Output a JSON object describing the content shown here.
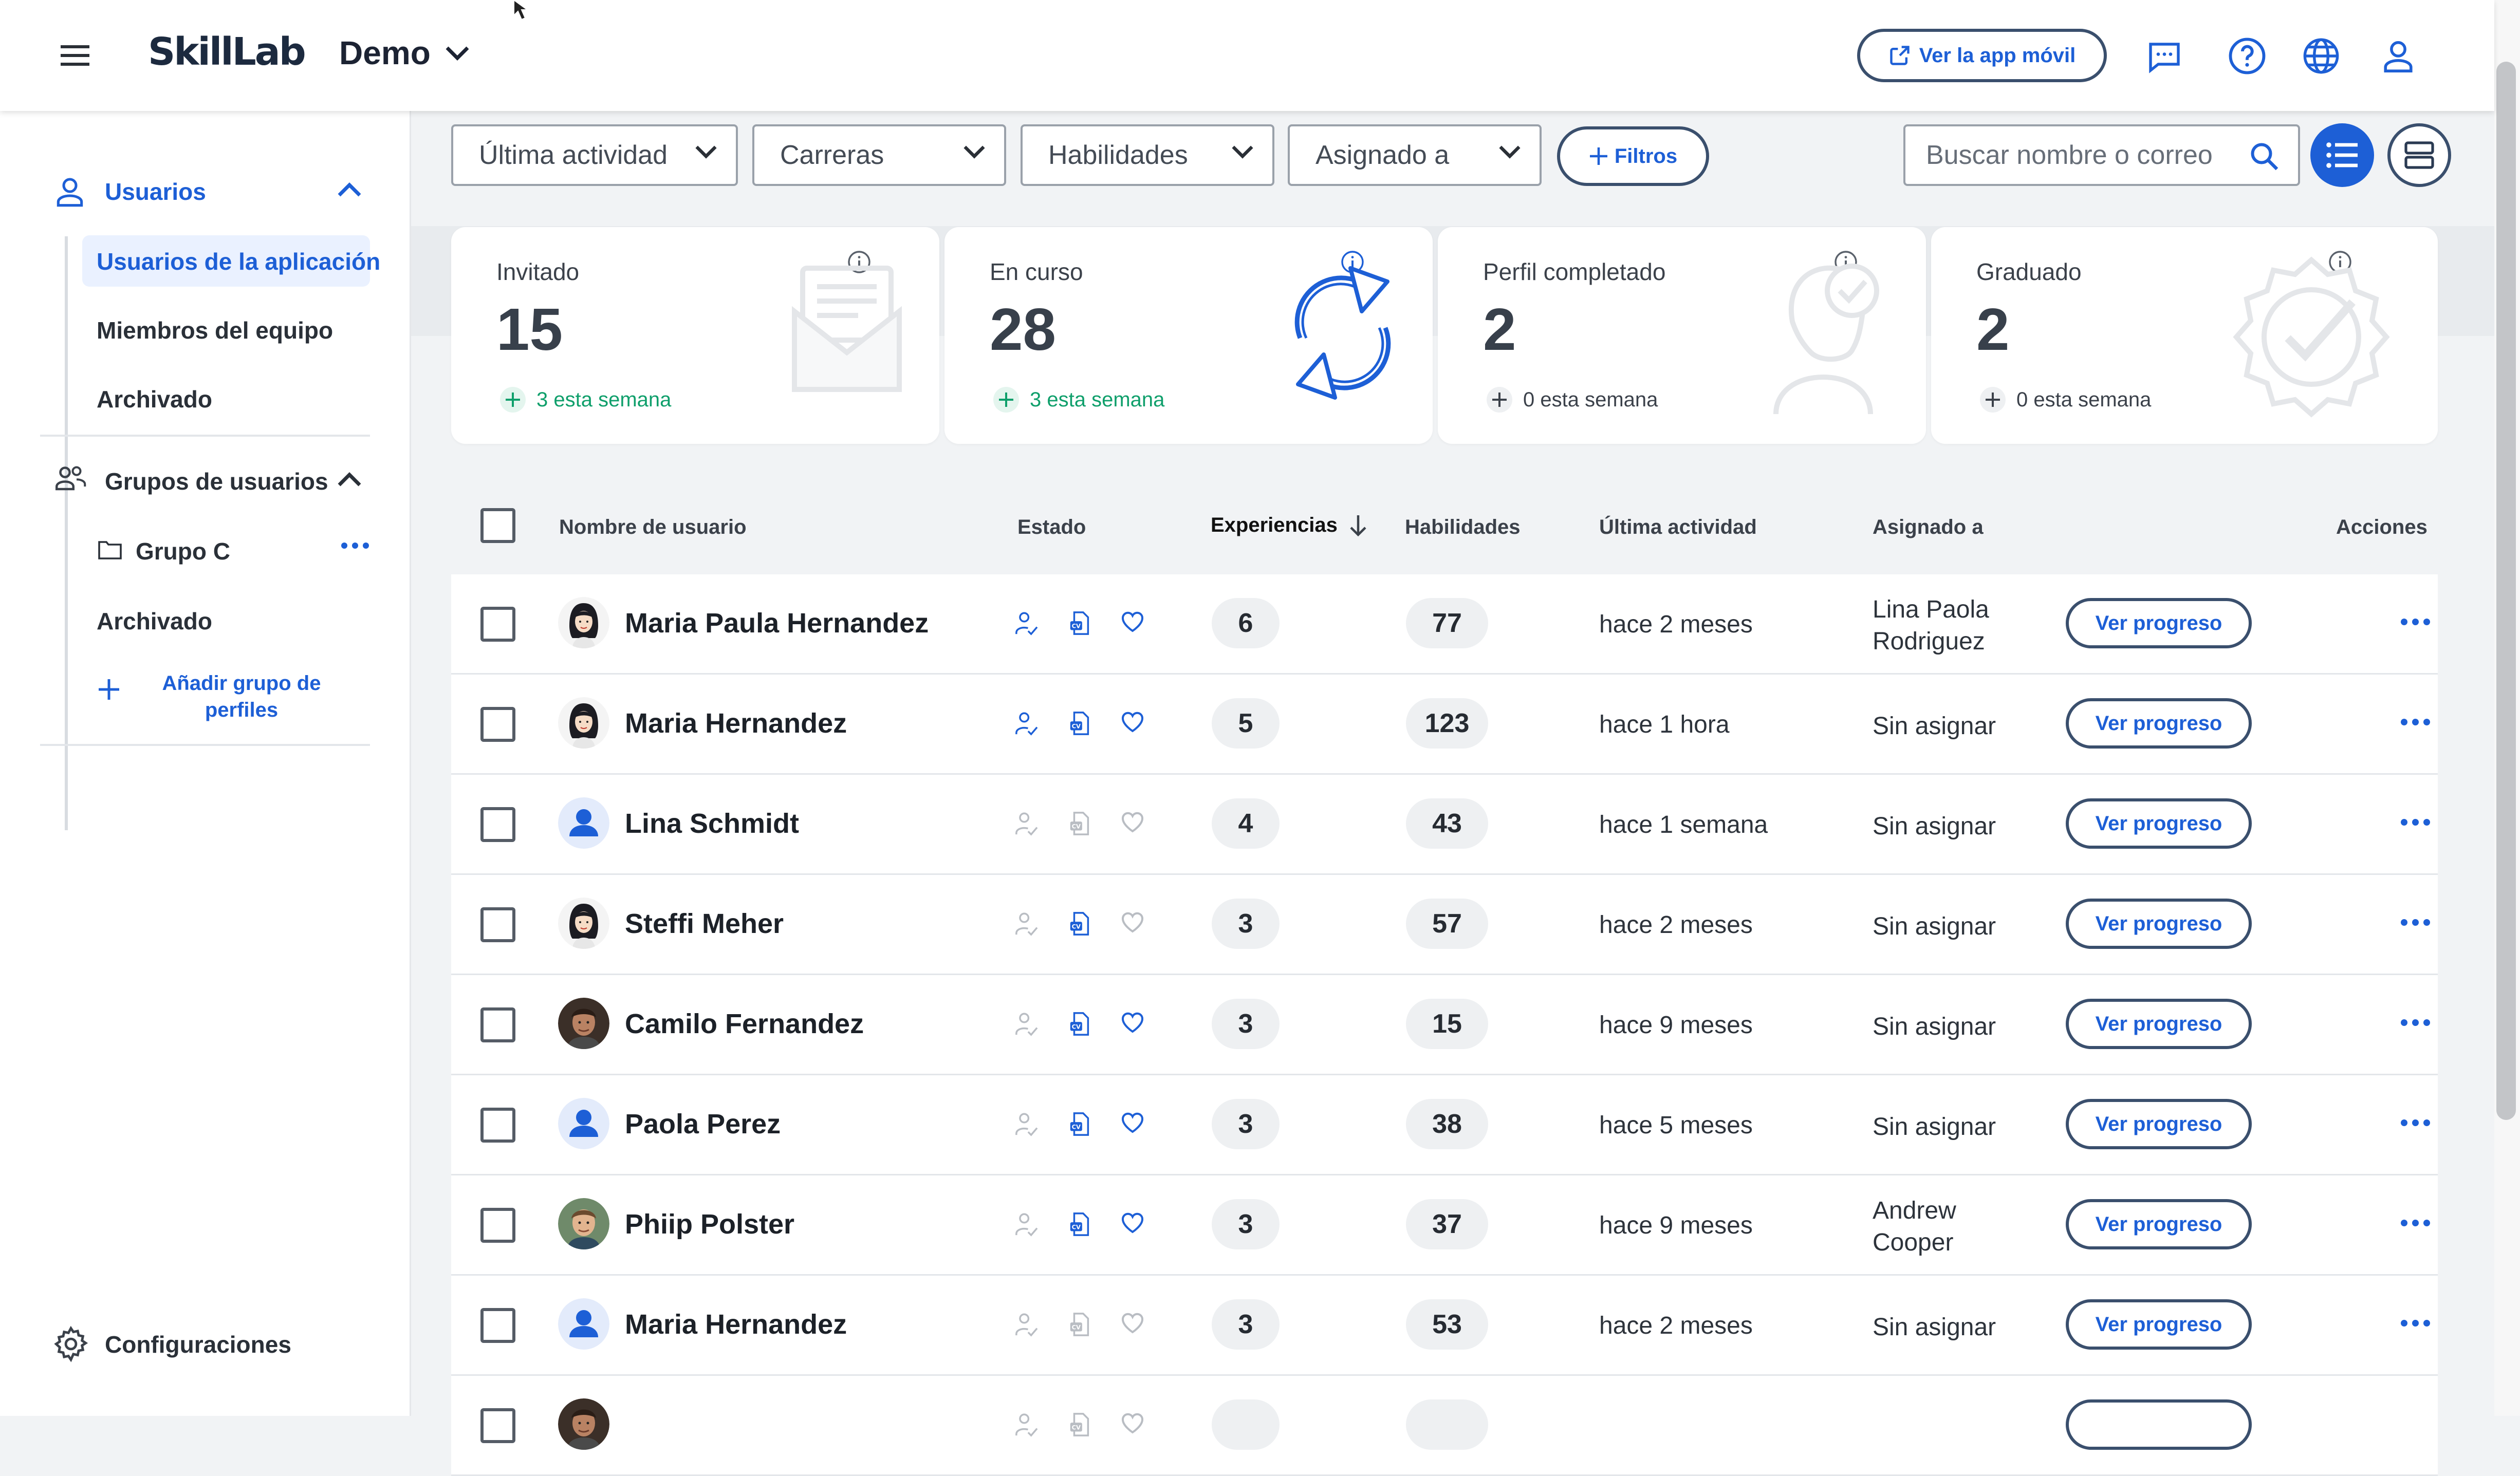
{
  "topbar": {
    "brand": "SkillLab",
    "workspace": "Demo",
    "mobile_app_button": "Ver la app móvil"
  },
  "sidebar": {
    "users_section": "Usuarios",
    "users_items": [
      "Usuarios de la aplicación",
      "Miembros del equipo",
      "Archivado"
    ],
    "groups_section": "Grupos de usuarios",
    "group_name": "Grupo C",
    "groups_archived": "Archivado",
    "add_group_line1": "Añadir grupo de",
    "add_group_line2": "perfiles",
    "settings": "Configuraciones"
  },
  "filters": {
    "last_activity": "Última actividad",
    "careers": "Carreras",
    "skills": "Habilidades",
    "assigned_to": "Asignado a",
    "filters_button": "Filtros",
    "search_placeholder": "Buscar nombre o correo"
  },
  "stats": [
    {
      "label": "Invitado",
      "value": "15",
      "week": "3 esta semana"
    },
    {
      "label": "En curso",
      "value": "28",
      "week": "3 esta semana"
    },
    {
      "label": "Perfil completado",
      "value": "2",
      "week": "0 esta semana"
    },
    {
      "label": "Graduado",
      "value": "2",
      "week": "0 esta semana"
    }
  ],
  "table": {
    "headers": {
      "name": "Nombre de usuario",
      "status": "Estado",
      "experiences": "Experiencias",
      "skills": "Habilidades",
      "last_activity": "Última actividad",
      "assigned": "Asignado a",
      "actions": "Acciones"
    },
    "progress_label": "Ver progreso",
    "rows": [
      {
        "name": "Maria Paula Hernandez",
        "exp": "6",
        "skills": "77",
        "activity": "hace 2 meses",
        "assigned1": "Lina Paola",
        "assigned2": "Rodriguez"
      },
      {
        "name": "Maria Hernandez",
        "exp": "5",
        "skills": "123",
        "activity": "hace 1 hora",
        "assigned1": "Sin asignar",
        "assigned2": ""
      },
      {
        "name": "Lina Schmidt",
        "exp": "4",
        "skills": "43",
        "activity": "hace 1 semana",
        "assigned1": "Sin asignar",
        "assigned2": ""
      },
      {
        "name": "Steffi Meher",
        "exp": "3",
        "skills": "57",
        "activity": "hace 2 meses",
        "assigned1": "Sin asignar",
        "assigned2": ""
      },
      {
        "name": "Camilo Fernandez",
        "exp": "3",
        "skills": "15",
        "activity": "hace 9 meses",
        "assigned1": "Sin asignar",
        "assigned2": ""
      },
      {
        "name": "Paola Perez",
        "exp": "3",
        "skills": "38",
        "activity": "hace 5 meses",
        "assigned1": "Sin asignar",
        "assigned2": ""
      },
      {
        "name": "Phiip Polster",
        "exp": "3",
        "skills": "37",
        "activity": "hace 9 meses",
        "assigned1": "Andrew",
        "assigned2": "Cooper"
      },
      {
        "name": "Maria Hernandez",
        "exp": "3",
        "skills": "53",
        "activity": "hace 2 meses",
        "assigned1": "Sin asignar",
        "assigned2": ""
      }
    ]
  },
  "colors": {
    "accent": "#1d5fd6",
    "positive": "#0f9f6b"
  }
}
